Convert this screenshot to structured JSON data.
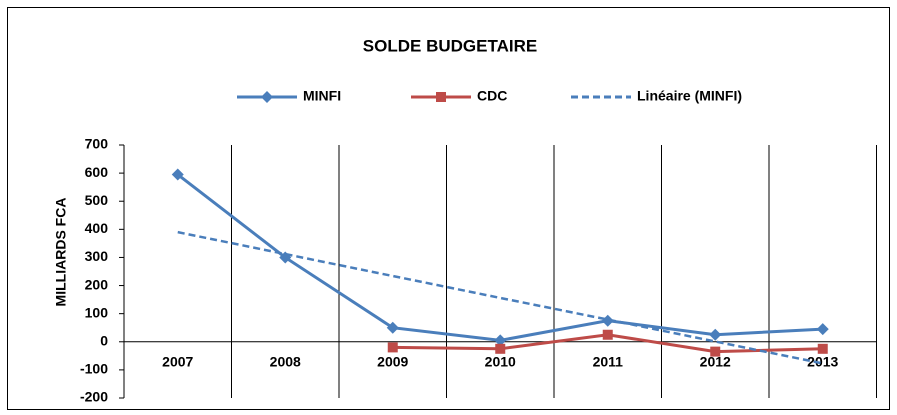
{
  "chart_data": {
    "type": "line",
    "title": "SOLDE BUDGETAIRE",
    "y_label": "MILLIARDS FCA",
    "categories": [
      "2007",
      "2008",
      "2009",
      "2010",
      "2011",
      "2012",
      "2013"
    ],
    "series": [
      {
        "name": "MINFI",
        "color": "#4a7ebb",
        "marker": "diamond",
        "values": [
          595,
          300,
          50,
          5,
          75,
          25,
          45
        ]
      },
      {
        "name": "CDC",
        "color": "#be4b48",
        "marker": "square",
        "values": [
          null,
          null,
          -20,
          -25,
          25,
          -35,
          -25
        ]
      },
      {
        "name": "Linéaire (MINFI)",
        "color": "#4a7ebb",
        "dashed": true,
        "values": [
          390,
          312,
          234,
          156,
          79,
          1,
          -77
        ]
      }
    ],
    "ylim": [
      -200,
      700
    ],
    "yticks": [
      -200,
      -100,
      0,
      100,
      200,
      300,
      400,
      500,
      600,
      700
    ],
    "legend": "top"
  }
}
